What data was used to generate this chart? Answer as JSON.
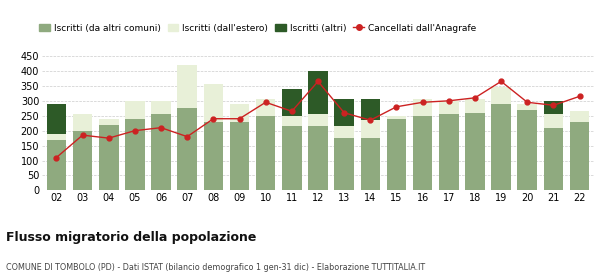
{
  "years": [
    "02",
    "03",
    "04",
    "05",
    "06",
    "07",
    "08",
    "09",
    "10",
    "11",
    "12",
    "13",
    "14",
    "15",
    "16",
    "17",
    "18",
    "19",
    "20",
    "21",
    "22"
  ],
  "iscritti_altri_comuni": [
    170,
    200,
    220,
    240,
    255,
    275,
    230,
    230,
    250,
    215,
    215,
    175,
    175,
    240,
    250,
    255,
    260,
    290,
    270,
    210,
    230
  ],
  "iscritti_estero": [
    20,
    55,
    20,
    60,
    45,
    145,
    125,
    60,
    55,
    35,
    40,
    40,
    60,
    10,
    55,
    45,
    45,
    55,
    20,
    45,
    35
  ],
  "iscritti_altri": [
    100,
    0,
    0,
    0,
    0,
    0,
    0,
    0,
    0,
    90,
    145,
    90,
    70,
    0,
    0,
    0,
    0,
    0,
    0,
    45,
    0
  ],
  "cancellati": [
    110,
    185,
    175,
    200,
    210,
    180,
    240,
    240,
    295,
    265,
    365,
    260,
    235,
    280,
    295,
    300,
    310,
    365,
    295,
    285,
    315
  ],
  "color_altri_comuni": "#8faa7f",
  "color_estero": "#e8f0d8",
  "color_altri": "#2d5a27",
  "color_cancellati": "#cc2222",
  "title": "Flusso migratorio della popolazione",
  "subtitle": "COMUNE DI TOMBOLO (PD) - Dati ISTAT (bilancio demografico 1 gen-31 dic) - Elaborazione TUTTITALIA.IT",
  "legend_labels": [
    "Iscritti (da altri comuni)",
    "Iscritti (dall'estero)",
    "Iscritti (altri)",
    "Cancellati dall'Anagrafe"
  ],
  "ylim": [
    0,
    450
  ],
  "yticks": [
    0,
    50,
    100,
    150,
    200,
    250,
    300,
    350,
    400,
    450
  ],
  "background_color": "#ffffff",
  "grid_color": "#cccccc"
}
